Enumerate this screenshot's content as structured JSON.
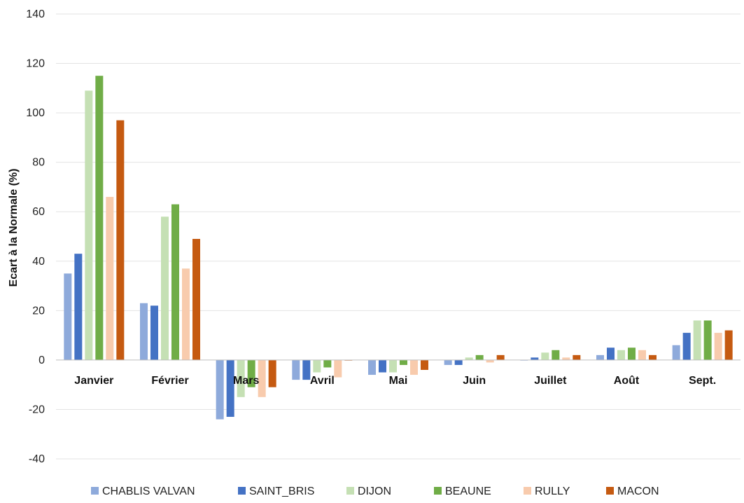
{
  "chart_data": {
    "type": "bar",
    "ylabel": "Ecart à la Normale (%)",
    "xlabel": "",
    "ylim": [
      -40,
      140
    ],
    "yticks": [
      -40,
      -20,
      0,
      20,
      40,
      60,
      80,
      100,
      120,
      140
    ],
    "grid": true,
    "legend_position": "bottom",
    "categories": [
      "Janvier",
      "Février",
      "Mars",
      "Avril",
      "Mai",
      "Juin",
      "Juillet",
      "Août",
      "Sept."
    ],
    "series": [
      {
        "name": "CHABLIS VALVAN",
        "color": "#8EAADB",
        "values": [
          35,
          23,
          -24,
          -8,
          -6,
          -2,
          0,
          2,
          6
        ]
      },
      {
        "name": "SAINT_BRIS",
        "color": "#4472C4",
        "values": [
          43,
          22,
          -23,
          -8,
          -5,
          -2,
          1,
          5,
          11
        ]
      },
      {
        "name": "DIJON",
        "color": "#C5E0B4",
        "values": [
          109,
          58,
          -15,
          -5,
          -5,
          1,
          3,
          4,
          16
        ]
      },
      {
        "name": "BEAUNE",
        "color": "#70AD47",
        "values": [
          115,
          63,
          -11,
          -3,
          -2,
          2,
          4,
          5,
          16
        ]
      },
      {
        "name": "RULLY",
        "color": "#F8CBAD",
        "values": [
          66,
          37,
          -15,
          -7,
          -6,
          -1,
          1,
          4,
          11
        ]
      },
      {
        "name": "MACON",
        "color": "#C55A11",
        "values": [
          97,
          49,
          -11,
          0,
          -4,
          2,
          2,
          2,
          12
        ]
      }
    ]
  }
}
